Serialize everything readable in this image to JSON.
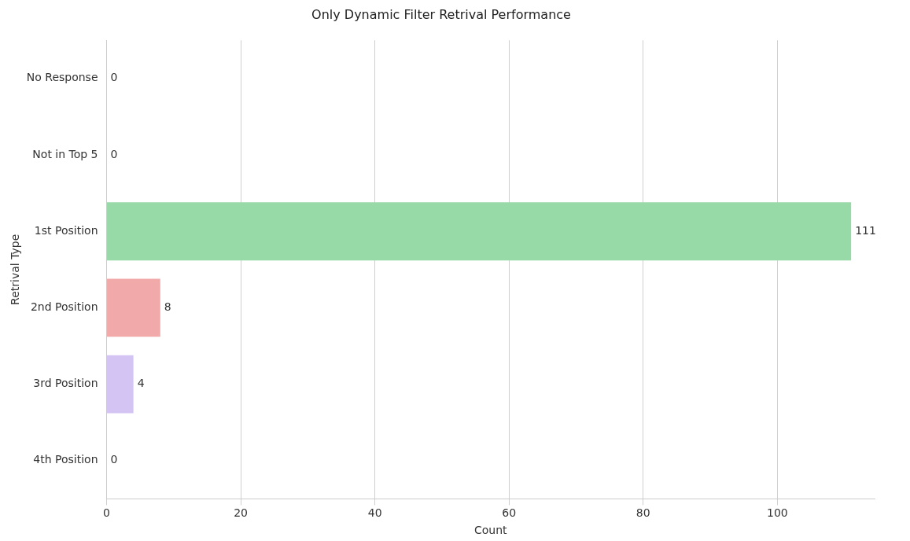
{
  "chart_data": {
    "type": "bar",
    "orientation": "horizontal",
    "title": "Only Dynamic Filter Retrival Performance",
    "xlabel": "Count",
    "ylabel": "Retrival Type",
    "categories": [
      "No Response",
      "Not in Top 5",
      "1st Position",
      "2nd Position",
      "3rd Position",
      "4th Position"
    ],
    "values": [
      0,
      0,
      111,
      8,
      4,
      0
    ],
    "colors": [
      "#a7c6e8",
      "#f4bc96",
      "#98d9a8",
      "#f2a9a9",
      "#d4c4f4",
      "#d9bfa6"
    ],
    "xlim": [
      0,
      114.5
    ],
    "xticks": [
      0,
      20,
      40,
      60,
      80,
      100
    ],
    "grid": "x",
    "data_labels": true
  }
}
